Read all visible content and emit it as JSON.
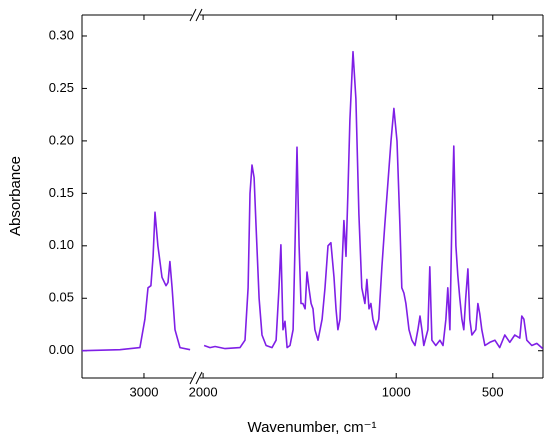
{
  "chart_data": {
    "type": "line",
    "xlabel": "Wavenumber, cm⁻¹",
    "ylabel": "Absorbance",
    "x_axis_segments": [
      {
        "xlim": [
          3320,
          2752
        ],
        "xticks": [
          3000
        ]
      },
      {
        "xlim": [
          2016,
          240
        ],
        "xticks": [
          2000,
          1000,
          500
        ]
      }
    ],
    "ylim": [
      -0.026,
      0.32
    ],
    "yticks": [
      {
        "value": 0,
        "label": "0.00"
      },
      {
        "value": 0.05,
        "label": "0.05"
      },
      {
        "value": 0.1,
        "label": "0.10"
      },
      {
        "value": 0.15,
        "label": "0.15"
      },
      {
        "value": 0.2,
        "label": "0.20"
      },
      {
        "value": 0.25,
        "label": "0.25"
      },
      {
        "value": 0.3,
        "label": "0.30"
      }
    ],
    "series": [
      {
        "color": "#7f1fe6",
        "x": [
          3320,
          3124,
          3021,
          2995,
          2979,
          2964,
          2953,
          2943,
          2928,
          2907,
          2886,
          2876,
          2866,
          2855,
          2840,
          2814,
          2762
        ],
        "values": [
          0,
          0.001,
          0.003,
          0.03,
          0.06,
          0.062,
          0.09,
          0.132,
          0.1,
          0.07,
          0.062,
          0.065,
          0.085,
          0.06,
          0.02,
          0.003,
          0.001
        ]
      },
      {
        "color": "#7f1fe6",
        "x": [
          1995,
          1964,
          1938,
          1886,
          1809,
          1783,
          1767,
          1757,
          1747,
          1736,
          1726,
          1710,
          1695,
          1674,
          1643,
          1622,
          1607,
          1597,
          1586,
          1576,
          1565,
          1550,
          1534,
          1524,
          1514,
          1503,
          1493,
          1483,
          1472,
          1462,
          1452,
          1441,
          1431,
          1421,
          1405,
          1384,
          1369,
          1353,
          1338,
          1322,
          1312,
          1302,
          1291,
          1281,
          1271,
          1260,
          1250,
          1240,
          1224,
          1209,
          1193,
          1178,
          1162,
          1152,
          1141,
          1131,
          1121,
          1105,
          1090,
          1074,
          1059,
          1043,
          1027,
          1012,
          996,
          981,
          971,
          960,
          950,
          934,
          919,
          903,
          888,
          877,
          867,
          857,
          836,
          826,
          815,
          795,
          774,
          758,
          743,
          733,
          722,
          712,
          702,
          691,
          681,
          671,
          660,
          650,
          640,
          629,
          619,
          608,
          588,
          577,
          567,
          557,
          541,
          515,
          489,
          464,
          438,
          412,
          386,
          360,
          350,
          339,
          324,
          298,
          272,
          241
        ],
        "values": [
          0.005,
          0.003,
          0.004,
          0.002,
          0.003,
          0.01,
          0.06,
          0.15,
          0.177,
          0.165,
          0.12,
          0.05,
          0.015,
          0.005,
          0.003,
          0.01,
          0.06,
          0.101,
          0.02,
          0.028,
          0.003,
          0.005,
          0.02,
          0.1,
          0.194,
          0.1,
          0.045,
          0.045,
          0.04,
          0.075,
          0.06,
          0.045,
          0.04,
          0.02,
          0.01,
          0.03,
          0.06,
          0.1,
          0.103,
          0.07,
          0.04,
          0.02,
          0.03,
          0.08,
          0.124,
          0.09,
          0.15,
          0.22,
          0.285,
          0.24,
          0.13,
          0.06,
          0.045,
          0.068,
          0.04,
          0.045,
          0.03,
          0.02,
          0.03,
          0.08,
          0.12,
          0.16,
          0.2,
          0.231,
          0.2,
          0.12,
          0.06,
          0.055,
          0.045,
          0.02,
          0.01,
          0.005,
          0.02,
          0.033,
          0.02,
          0.005,
          0.02,
          0.08,
          0.01,
          0.005,
          0.01,
          0.005,
          0.03,
          0.06,
          0.02,
          0.12,
          0.195,
          0.1,
          0.072,
          0.05,
          0.03,
          0.02,
          0.05,
          0.078,
          0.03,
          0.015,
          0.02,
          0.045,
          0.035,
          0.02,
          0.005,
          0.008,
          0.01,
          0.003,
          0.015,
          0.008,
          0.015,
          0.012,
          0.033,
          0.03,
          0.01,
          0.005,
          0.007,
          0.002
        ]
      }
    ]
  }
}
